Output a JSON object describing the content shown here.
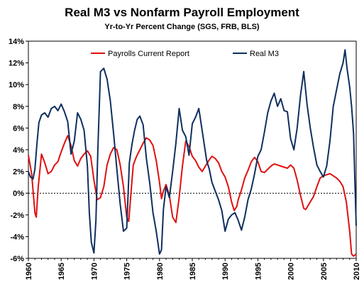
{
  "chart_data": {
    "type": "line",
    "title": "Real M3 vs Nonfarm Payroll Employment",
    "subtitle": "Yr-to-Yr  Percent Change (SGS, FRB, BLS)",
    "xlabel": "",
    "ylabel": "",
    "xlim": [
      1960,
      2010
    ],
    "ylim": [
      -6,
      14
    ],
    "x_ticks": [
      "1960",
      "1965",
      "1970",
      "1975",
      "1980",
      "1985",
      "1990",
      "1995",
      "2000",
      "2005",
      "2010"
    ],
    "y_ticks": [
      "14%",
      "12%",
      "10%",
      "8%",
      "6%",
      "4%",
      "2%",
      "0%",
      "-2%",
      "-4%",
      "-6%"
    ],
    "grid": false,
    "legend": "top",
    "series": [
      {
        "name": "Payrolls Current Report",
        "color": "#e01010",
        "x": [
          1960.0,
          1960.5,
          1961.0,
          1961.2,
          1961.5,
          1962.0,
          1962.5,
          1963.0,
          1963.5,
          1964.0,
          1964.5,
          1965.0,
          1965.5,
          1966.0,
          1966.5,
          1967.0,
          1967.5,
          1968.0,
          1968.5,
          1969.0,
          1969.5,
          1970.0,
          1970.5,
          1971.0,
          1971.5,
          1972.0,
          1972.5,
          1973.0,
          1973.5,
          1974.0,
          1974.5,
          1975.0,
          1975.3,
          1975.6,
          1976.0,
          1976.5,
          1977.0,
          1977.5,
          1978.0,
          1978.5,
          1979.0,
          1979.5,
          1980.0,
          1980.3,
          1980.6,
          1981.0,
          1981.5,
          1982.0,
          1982.5,
          1983.0,
          1983.5,
          1984.0,
          1984.5,
          1985.0,
          1985.5,
          1986.0,
          1986.5,
          1987.0,
          1987.5,
          1988.0,
          1988.5,
          1989.0,
          1989.5,
          1990.0,
          1990.5,
          1991.0,
          1991.4,
          1991.8,
          1992.0,
          1992.5,
          1993.0,
          1993.5,
          1994.0,
          1994.5,
          1995.0,
          1995.5,
          1996.0,
          1996.5,
          1997.0,
          1997.5,
          1998.0,
          1998.5,
          1999.0,
          1999.5,
          2000.0,
          2000.5,
          2001.0,
          2001.5,
          2002.0,
          2002.3,
          2002.6,
          2003.0,
          2003.5,
          2004.0,
          2004.5,
          2005.0,
          2005.5,
          2006.0,
          2006.5,
          2007.0,
          2007.5,
          2008.0,
          2008.5,
          2009.0,
          2009.3,
          2009.6,
          2010.0
        ],
        "values": [
          3.5,
          1.8,
          -1.8,
          -2.2,
          0.6,
          3.6,
          2.8,
          1.8,
          2.0,
          2.6,
          2.9,
          3.8,
          4.6,
          5.3,
          4.4,
          3.0,
          2.5,
          3.2,
          3.6,
          3.9,
          3.4,
          1.2,
          -0.6,
          -0.4,
          0.6,
          2.6,
          3.6,
          4.2,
          4.0,
          2.6,
          0.6,
          -2.2,
          -2.6,
          -0.4,
          2.6,
          3.4,
          4.0,
          4.6,
          5.1,
          4.9,
          4.4,
          3.0,
          1.0,
          -0.5,
          0.2,
          0.8,
          -0.2,
          -2.2,
          -2.7,
          -0.4,
          2.5,
          4.8,
          4.3,
          3.4,
          3.0,
          2.4,
          2.0,
          2.5,
          3.0,
          3.4,
          3.2,
          2.8,
          2.0,
          1.5,
          0.6,
          -0.8,
          -1.6,
          -1.2,
          -0.6,
          0.3,
          1.4,
          2.1,
          2.9,
          3.3,
          2.9,
          2.0,
          1.9,
          2.2,
          2.5,
          2.7,
          2.6,
          2.5,
          2.4,
          2.3,
          2.6,
          2.3,
          1.2,
          -0.2,
          -1.4,
          -1.5,
          -1.2,
          -0.8,
          -0.3,
          0.6,
          1.4,
          1.6,
          1.7,
          1.8,
          1.6,
          1.4,
          1.1,
          0.6,
          -0.8,
          -3.5,
          -5.6,
          -5.8,
          -5.6
        ]
      },
      {
        "name": "Real M3",
        "color": "#0f2f5f",
        "x": [
          1960.0,
          1960.3,
          1960.7,
          1961.0,
          1961.3,
          1961.6,
          1962.0,
          1962.5,
          1963.0,
          1963.5,
          1964.0,
          1964.5,
          1965.0,
          1965.5,
          1966.0,
          1966.5,
          1967.0,
          1967.5,
          1968.0,
          1968.5,
          1969.0,
          1969.3,
          1969.6,
          1970.0,
          1970.3,
          1970.6,
          1971.0,
          1971.5,
          1972.0,
          1972.5,
          1973.0,
          1973.5,
          1974.0,
          1974.5,
          1975.0,
          1975.4,
          1975.8,
          1976.2,
          1976.6,
          1977.0,
          1977.5,
          1978.0,
          1978.5,
          1979.0,
          1979.5,
          1980.0,
          1980.3,
          1980.6,
          1981.0,
          1981.5,
          1982.0,
          1982.5,
          1983.0,
          1983.5,
          1984.0,
          1984.5,
          1985.0,
          1985.5,
          1986.0,
          1986.4,
          1986.8,
          1987.2,
          1987.6,
          1988.0,
          1988.5,
          1989.0,
          1989.5,
          1990.0,
          1990.5,
          1991.0,
          1991.5,
          1992.0,
          1992.5,
          1993.0,
          1993.5,
          1994.0,
          1994.5,
          1995.0,
          1995.5,
          1996.0,
          1996.5,
          1997.0,
          1997.5,
          1998.0,
          1998.5,
          1999.0,
          1999.5,
          2000.0,
          2000.5,
          2001.0,
          2001.5,
          2002.0,
          2002.5,
          2003.0,
          2003.5,
          2004.0,
          2004.5,
          2005.0,
          2005.5,
          2006.0,
          2006.5,
          2007.0,
          2007.5,
          2008.0,
          2008.3,
          2008.6,
          2009.0,
          2009.3,
          2009.6,
          2009.8,
          2010.0
        ],
        "values": [
          2.0,
          1.5,
          1.3,
          2.2,
          4.5,
          6.5,
          7.2,
          7.4,
          7.0,
          7.8,
          8.0,
          7.6,
          8.2,
          7.5,
          6.6,
          3.6,
          4.8,
          7.4,
          6.8,
          5.8,
          2.5,
          -1.8,
          -4.5,
          -5.5,
          -2.5,
          4.0,
          11.2,
          11.5,
          10.5,
          8.5,
          5.5,
          2.2,
          -1.0,
          -3.5,
          -3.2,
          2.8,
          4.5,
          5.8,
          6.8,
          7.1,
          6.3,
          3.2,
          1.0,
          -1.8,
          -3.5,
          -5.6,
          -5.2,
          -1.5,
          0.6,
          -0.4,
          2.0,
          4.6,
          7.8,
          5.8,
          5.2,
          3.5,
          6.4,
          7.0,
          7.8,
          6.2,
          4.6,
          3.0,
          2.2,
          1.0,
          0.2,
          -0.6,
          -1.6,
          -3.5,
          -2.4,
          -2.0,
          -1.8,
          -2.5,
          -3.4,
          -2.2,
          -0.6,
          0.4,
          1.8,
          3.4,
          4.0,
          5.6,
          7.4,
          8.5,
          9.2,
          8.0,
          8.7,
          7.6,
          7.5,
          5.0,
          4.0,
          6.0,
          9.0,
          11.2,
          8.2,
          6.0,
          4.2,
          2.6,
          2.0,
          1.5,
          2.5,
          4.8,
          8.0,
          9.5,
          11.0,
          12.0,
          13.2,
          11.5,
          9.8,
          8.0,
          5.5,
          1.0,
          -3.0
        ]
      }
    ]
  }
}
